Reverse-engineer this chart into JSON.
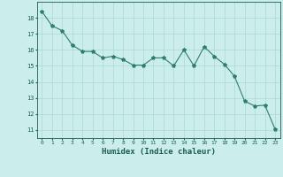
{
  "x": [
    0,
    1,
    2,
    3,
    4,
    5,
    6,
    7,
    8,
    9,
    10,
    11,
    12,
    13,
    14,
    15,
    16,
    17,
    18,
    19,
    20,
    21,
    22,
    23
  ],
  "y": [
    18.4,
    17.5,
    17.2,
    16.3,
    15.9,
    15.9,
    15.5,
    15.6,
    15.4,
    15.05,
    15.05,
    15.5,
    15.5,
    15.0,
    16.0,
    15.0,
    16.2,
    15.6,
    15.1,
    14.35,
    12.8,
    12.5,
    12.55,
    11.05
  ],
  "line_color": "#2e7d6e",
  "marker": "*",
  "marker_size": 3,
  "bg_color": "#cceeea",
  "grid_color": "#aad8d0",
  "axis_label_color": "#1a5c52",
  "tick_color": "#1a5c52",
  "xlabel": "Humidex (Indice chaleur)",
  "xlim": [
    -0.5,
    23.5
  ],
  "ylim": [
    10.5,
    19.0
  ],
  "yticks": [
    11,
    12,
    13,
    14,
    15,
    16,
    17,
    18
  ],
  "xticks": [
    0,
    1,
    2,
    3,
    4,
    5,
    6,
    7,
    8,
    9,
    10,
    11,
    12,
    13,
    14,
    15,
    16,
    17,
    18,
    19,
    20,
    21,
    22,
    23
  ]
}
